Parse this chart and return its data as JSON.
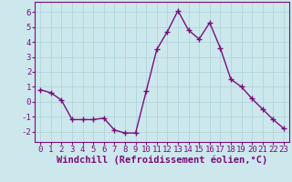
{
  "x": [
    0,
    1,
    2,
    3,
    4,
    5,
    6,
    7,
    8,
    9,
    10,
    11,
    12,
    13,
    14,
    15,
    16,
    17,
    18,
    19,
    20,
    21,
    22,
    23
  ],
  "y": [
    0.8,
    0.6,
    0.1,
    -1.2,
    -1.2,
    -1.2,
    -1.1,
    -1.9,
    -2.1,
    -2.1,
    0.7,
    3.5,
    4.7,
    6.1,
    4.8,
    4.2,
    5.3,
    3.6,
    1.5,
    1.0,
    0.2,
    -0.5,
    -1.2,
    -1.8
  ],
  "line_color": "#7b0d7b",
  "marker": "+",
  "marker_size": 4,
  "marker_linewidth": 1.0,
  "bg_color": "#cce8ec",
  "grid_color": "#aad0d8",
  "xlabel": "Windchill (Refroidissement éolien,°C)",
  "ylim": [
    -2.7,
    6.7
  ],
  "xlim": [
    -0.5,
    23.5
  ],
  "yticks": [
    -2,
    -1,
    0,
    1,
    2,
    3,
    4,
    5,
    6
  ],
  "xticks": [
    0,
    1,
    2,
    3,
    4,
    5,
    6,
    7,
    8,
    9,
    10,
    11,
    12,
    13,
    14,
    15,
    16,
    17,
    18,
    19,
    20,
    21,
    22,
    23
  ],
  "tick_label_fontsize": 6.5,
  "xlabel_fontsize": 7.5,
  "xlabel_color": "#7b0d7b",
  "spine_color": "#7b0d7b",
  "line_width": 1.0
}
